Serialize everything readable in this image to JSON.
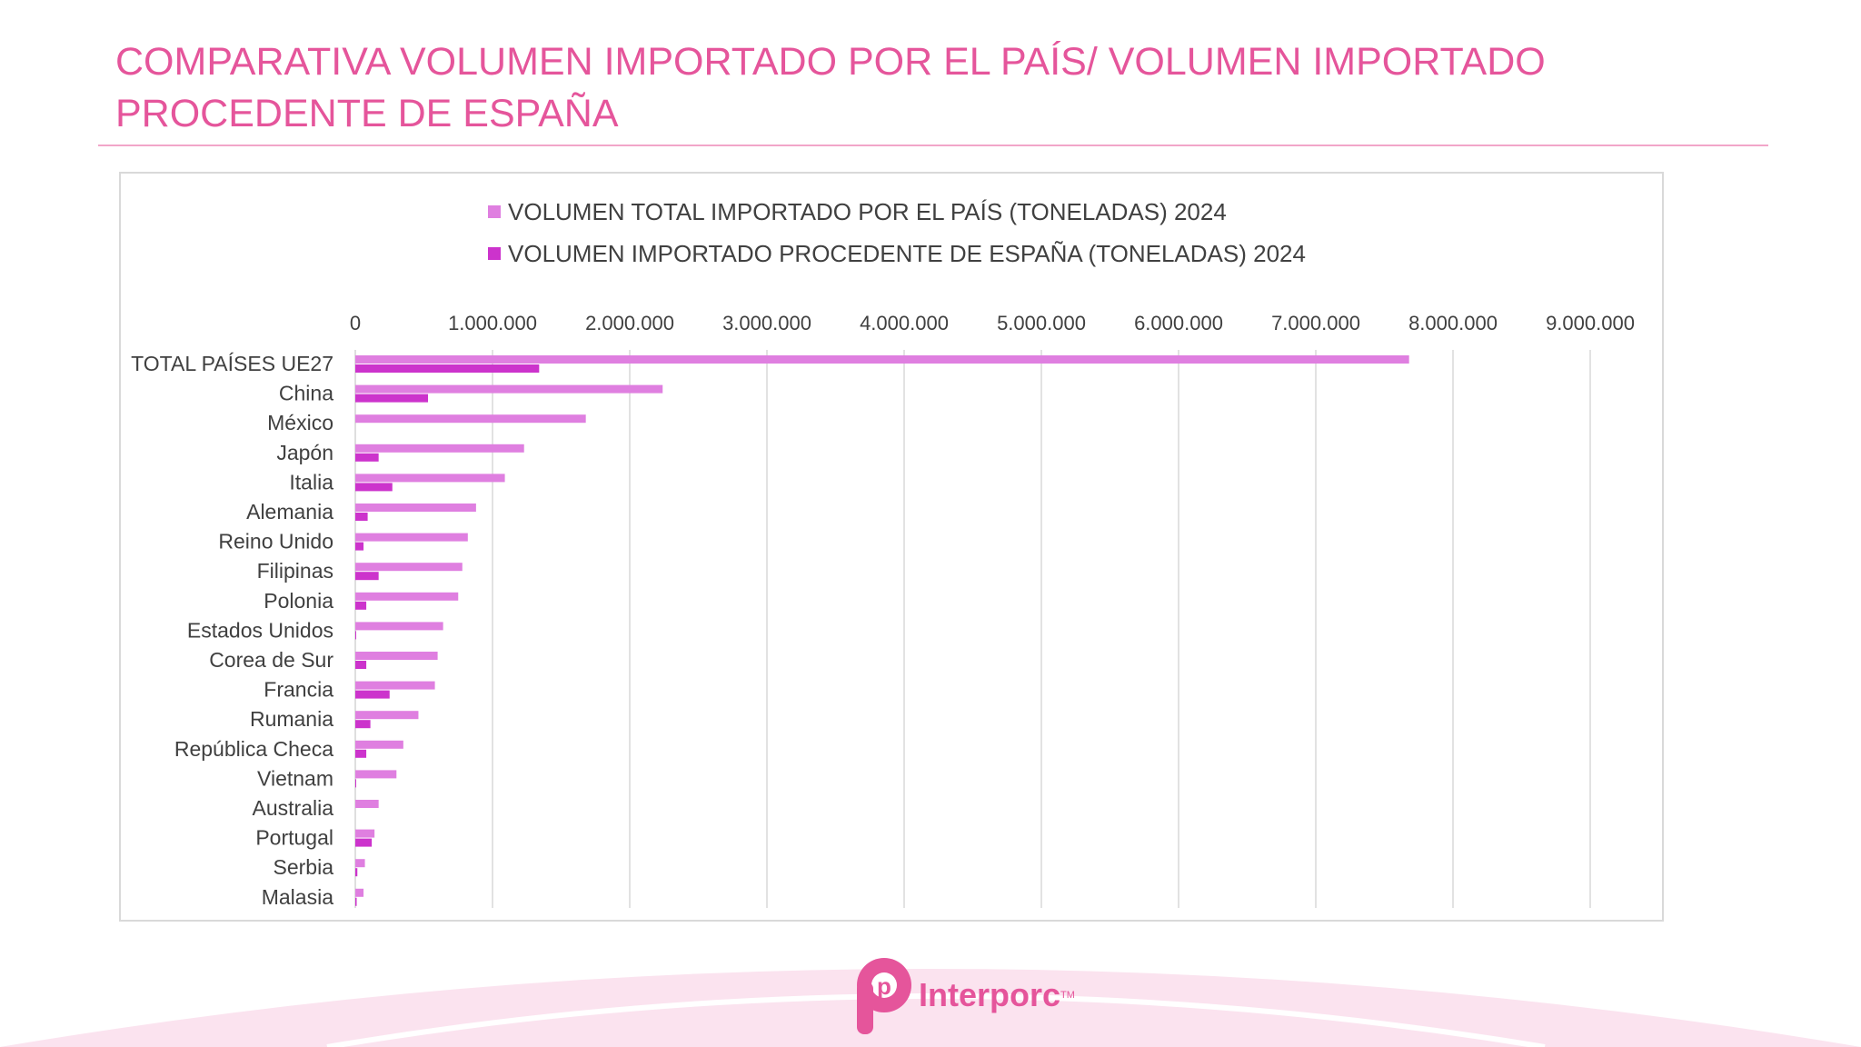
{
  "title": "COMPARATIVA VOLUMEN IMPORTADO POR EL PAÍS/  VOLUMEN IMPORTADO PROCEDENTE DE ESPAÑA",
  "logo": {
    "name": "Interporc",
    "tm": "TM",
    "letter": "p"
  },
  "colors": {
    "accent": "#e5559b",
    "series_total": "#df7fe0",
    "series_spain": "#cc33cc"
  },
  "chart_data": {
    "type": "bar",
    "orientation": "horizontal",
    "title": "",
    "xlabel": "",
    "ylabel": "",
    "xlim": [
      0,
      9000000
    ],
    "x_ticks": [
      "0",
      "1.000.000",
      "2.000.000",
      "3.000.000",
      "4.000.000",
      "5.000.000",
      "6.000.000",
      "7.000.000",
      "8.000.000",
      "9.000.000"
    ],
    "grid": true,
    "legend_position": "top",
    "categories": [
      "TOTAL PAÍSES UE27",
      "China",
      "México",
      "Japón",
      "Italia",
      "Alemania",
      "Reino Unido",
      "Filipinas",
      "Polonia",
      "Estados Unidos",
      "Corea de Sur",
      "Francia",
      "Rumania",
      "República Checa",
      "Vietnam",
      "Australia",
      "Portugal",
      "Serbia",
      "Malasia"
    ],
    "series": [
      {
        "name": "VOLUMEN TOTAL IMPORTADO POR EL PAÍS (TONELADAS) 2024",
        "color": "#df7fe0",
        "values": [
          7680000,
          2240000,
          1680000,
          1230000,
          1090000,
          880000,
          820000,
          780000,
          750000,
          640000,
          600000,
          580000,
          460000,
          350000,
          300000,
          170000,
          140000,
          70000,
          60000
        ]
      },
      {
        "name": "VOLUMEN IMPORTADO PROCEDENTE DE ESPAÑA (TONELADAS) 2024",
        "color": "#cc33cc",
        "values": [
          1340000,
          530000,
          0,
          170000,
          270000,
          90000,
          60000,
          170000,
          80000,
          5000,
          80000,
          250000,
          110000,
          80000,
          5000,
          0,
          120000,
          15000,
          10000
        ]
      }
    ]
  }
}
